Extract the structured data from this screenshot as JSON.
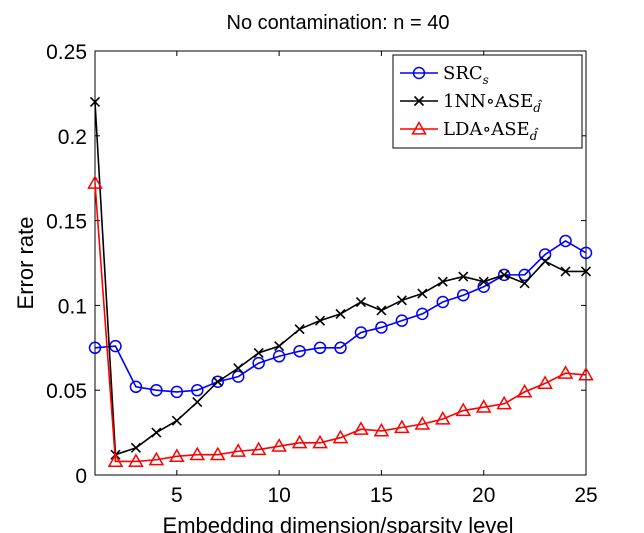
{
  "chart_data": {
    "type": "line",
    "title": "No contamination: n = 40",
    "xlabel": "Embedding dimension/sparsity level",
    "ylabel": "Error rate",
    "xlim": [
      1,
      25
    ],
    "ylim": [
      0,
      0.25
    ],
    "xticks": [
      5,
      10,
      15,
      20,
      25
    ],
    "xtick_labels": [
      "5",
      "10",
      "15",
      "20",
      "25"
    ],
    "yticks": [
      0,
      0.05,
      0.1,
      0.15,
      0.2,
      0.25
    ],
    "ytick_labels": [
      "0",
      "0.05",
      "0.1",
      "0.15",
      "0.2",
      "0.25"
    ],
    "grid": false,
    "legend_position": "top-right",
    "x": [
      1,
      2,
      3,
      4,
      5,
      6,
      7,
      8,
      9,
      10,
      11,
      12,
      13,
      14,
      15,
      16,
      17,
      18,
      19,
      20,
      21,
      22,
      23,
      24,
      25
    ],
    "series": [
      {
        "name": "SRC_s",
        "legend_main": "SRC",
        "legend_sub": "s",
        "color": "#0000ff",
        "marker": "circle",
        "values": [
          0.075,
          0.076,
          0.052,
          0.05,
          0.049,
          0.05,
          0.055,
          0.058,
          0.066,
          0.07,
          0.073,
          0.075,
          0.075,
          0.084,
          0.087,
          0.091,
          0.095,
          0.102,
          0.106,
          0.111,
          0.118,
          0.118,
          0.13,
          0.138,
          0.131
        ]
      },
      {
        "name": "1NN∘ASE_d̂",
        "legend_main": "1NN∘ASE",
        "legend_sub": "d̂",
        "color": "#000000",
        "marker": "x",
        "values": [
          0.22,
          0.012,
          0.016,
          0.025,
          0.032,
          0.043,
          0.055,
          0.063,
          0.072,
          0.076,
          0.086,
          0.091,
          0.095,
          0.102,
          0.097,
          0.103,
          0.107,
          0.114,
          0.117,
          0.114,
          0.118,
          0.113,
          0.126,
          0.12,
          0.12
        ]
      },
      {
        "name": "LDA∘ASE_d̂",
        "legend_main": "LDA∘ASE",
        "legend_sub": "d̂",
        "color": "#ff0000",
        "marker": "triangle",
        "values": [
          0.172,
          0.008,
          0.008,
          0.009,
          0.011,
          0.012,
          0.012,
          0.014,
          0.015,
          0.017,
          0.019,
          0.019,
          0.022,
          0.027,
          0.026,
          0.028,
          0.03,
          0.033,
          0.038,
          0.04,
          0.042,
          0.049,
          0.054,
          0.06,
          0.059
        ]
      }
    ]
  }
}
